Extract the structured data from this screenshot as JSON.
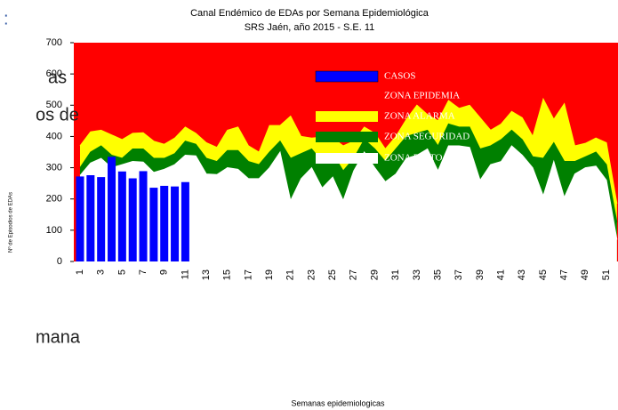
{
  "slide_fragments": [
    ":",
    "as",
    "os  de",
    "mana"
  ],
  "chart_data": {
    "type": "endemic-channel",
    "title": "Canal Endémico de EDAs por Semana Epidemiológica",
    "subtitle": "SRS Jaén, año 2015 - S.E. 11",
    "x_label": "Semanas epidemiologicas",
    "y_label": "Nº de Episodios de EDAs",
    "categories": [
      1,
      null,
      3,
      null,
      5,
      null,
      7,
      null,
      9,
      null,
      11,
      null,
      13,
      null,
      15,
      null,
      17,
      null,
      19,
      null,
      21,
      null,
      23,
      null,
      25,
      null,
      27,
      null,
      29,
      null,
      31,
      null,
      33,
      null,
      35,
      null,
      37,
      null,
      39,
      null,
      41,
      null,
      43,
      null,
      45,
      null,
      47,
      null,
      49,
      null,
      51,
      null
    ],
    "ylim": [
      0,
      700
    ],
    "yticks": [
      0,
      100,
      200,
      300,
      400,
      500,
      600,
      700
    ],
    "series": [
      {
        "name": "CASOS",
        "color": "#0000ff",
        "kind": "bar",
        "values": [
          272,
          276,
          270,
          335,
          288,
          266,
          289,
          236,
          242,
          240,
          254,
          null,
          null,
          null,
          null,
          null,
          null,
          null,
          null,
          null,
          null,
          null,
          null,
          null,
          null,
          null,
          null,
          null,
          null,
          null,
          null,
          null,
          null,
          null,
          null,
          null,
          null,
          null,
          null,
          null,
          null,
          null,
          null,
          null,
          null,
          null,
          null,
          null,
          null,
          null,
          null,
          null
        ]
      },
      {
        "name": "ZONA EPIDEMIA",
        "color": "#ff0000",
        "kind": "zone"
      },
      {
        "name": "ZONA ALARMA",
        "color": "#ffff00",
        "kind": "zone",
        "values": [
          370,
          415,
          420,
          405,
          390,
          410,
          412,
          385,
          375,
          395,
          430,
          410,
          380,
          365,
          420,
          430,
          370,
          350,
          435,
          435,
          465,
          400,
          395,
          398,
          395,
          370,
          385,
          430,
          410,
          360,
          400,
          455,
          500,
          470,
          450,
          515,
          490,
          500,
          460,
          420,
          440,
          480,
          460,
          400,
          520,
          455,
          505,
          370,
          378,
          395,
          380,
          185
        ]
      },
      {
        "name": "ZONA SEGURIDAD",
        "color": "#008000",
        "kind": "zone",
        "values": [
          300,
          350,
          370,
          340,
          330,
          360,
          360,
          330,
          330,
          345,
          385,
          375,
          330,
          320,
          355,
          355,
          320,
          310,
          350,
          385,
          330,
          345,
          360,
          320,
          345,
          290,
          330,
          390,
          360,
          320,
          360,
          400,
          410,
          420,
          370,
          440,
          430,
          430,
          360,
          370,
          390,
          420,
          390,
          335,
          330,
          380,
          320,
          320,
          335,
          350,
          310,
          125
        ]
      },
      {
        "name": "ZONA EXITO",
        "color": "#ffffff",
        "kind": "zone",
        "values": [
          275,
          315,
          330,
          300,
          310,
          320,
          318,
          285,
          295,
          310,
          340,
          338,
          280,
          278,
          300,
          295,
          265,
          265,
          300,
          350,
          195,
          265,
          300,
          235,
          270,
          195,
          290,
          350,
          300,
          255,
          280,
          330,
          340,
          360,
          290,
          370,
          370,
          365,
          260,
          310,
          320,
          370,
          340,
          300,
          210,
          320,
          205,
          280,
          300,
          305,
          260,
          70
        ]
      }
    ]
  }
}
